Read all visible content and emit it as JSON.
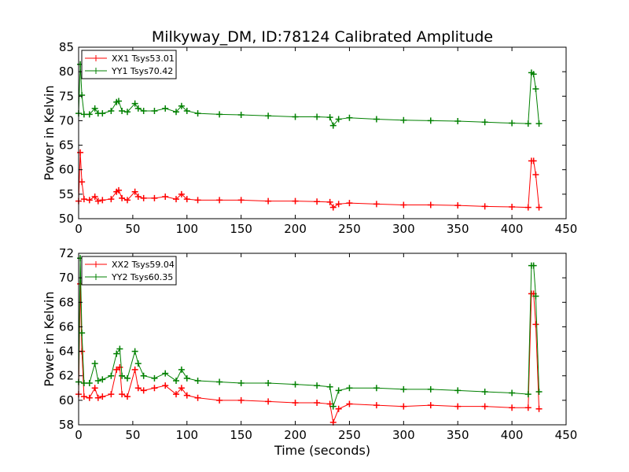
{
  "figure": {
    "title": "Milkyway_DM, ID:78124 Calibrated Amplitude",
    "x_label": "Time (seconds)",
    "y_label": "Power in Kelvin"
  },
  "colors": {
    "xx": "#ff0000",
    "yy": "#008000"
  },
  "chart_data": [
    {
      "type": "line",
      "ylabel": "Power in Kelvin",
      "xlim": [
        0,
        450
      ],
      "ylim": [
        50,
        85
      ],
      "xticks": [
        0,
        50,
        100,
        150,
        200,
        250,
        300,
        350,
        400,
        450
      ],
      "yticks": [
        50,
        55,
        60,
        65,
        70,
        75,
        80,
        85
      ],
      "grid": false,
      "legend": "top-left",
      "series": [
        {
          "name": "XX1 Tsys53.01",
          "color": "#ff0000",
          "x": [
            0,
            1.5,
            3,
            5,
            10,
            15,
            18,
            22,
            30,
            35,
            37,
            40,
            45,
            52,
            55,
            60,
            70,
            80,
            90,
            95,
            100,
            110,
            130,
            150,
            175,
            200,
            220,
            232,
            235,
            240,
            250,
            275,
            300,
            325,
            350,
            375,
            400,
            415,
            418,
            420,
            422,
            425
          ],
          "y": [
            53.6,
            63.5,
            57.5,
            54,
            53.8,
            54.5,
            53.6,
            53.8,
            54,
            55.5,
            55.8,
            54.2,
            53.8,
            55.5,
            54.5,
            54.2,
            54.2,
            54.5,
            54,
            55,
            54,
            53.8,
            53.8,
            53.8,
            53.6,
            53.6,
            53.5,
            53.4,
            52.3,
            53,
            53.2,
            53,
            52.8,
            52.8,
            52.7,
            52.5,
            52.4,
            52.3,
            61.8,
            61.8,
            59,
            52.3
          ]
        },
        {
          "name": "YY1 Tsys70.42",
          "color": "#008000",
          "x": [
            0,
            1.5,
            3,
            5,
            10,
            15,
            18,
            22,
            30,
            35,
            37,
            40,
            45,
            52,
            55,
            60,
            70,
            80,
            90,
            95,
            100,
            110,
            130,
            150,
            175,
            200,
            220,
            232,
            235,
            240,
            250,
            275,
            300,
            325,
            350,
            375,
            400,
            415,
            418,
            420,
            422,
            425
          ],
          "y": [
            71.5,
            81.5,
            75.2,
            71.3,
            71.3,
            72.5,
            71.5,
            71.5,
            72,
            73.8,
            74,
            72,
            71.8,
            73.5,
            72.5,
            72,
            72,
            72.5,
            71.8,
            73,
            72,
            71.5,
            71.3,
            71.2,
            71,
            70.8,
            70.8,
            70.7,
            69,
            70.3,
            70.6,
            70.3,
            70.1,
            70,
            69.9,
            69.7,
            69.5,
            69.4,
            79.8,
            79.5,
            76.5,
            69.4
          ]
        }
      ]
    },
    {
      "type": "line",
      "xlabel": "Time (seconds)",
      "ylabel": "Power in Kelvin",
      "xlim": [
        0,
        450
      ],
      "ylim": [
        58,
        72
      ],
      "xticks": [
        0,
        50,
        100,
        150,
        200,
        250,
        300,
        350,
        400,
        450
      ],
      "yticks": [
        58,
        60,
        62,
        64,
        66,
        68,
        70,
        72
      ],
      "grid": false,
      "legend": "top-left",
      "series": [
        {
          "name": "XX2 Tsys59.04",
          "color": "#ff0000",
          "x": [
            0,
            1.5,
            3,
            5,
            10,
            15,
            18,
            22,
            30,
            35,
            38,
            40,
            45,
            52,
            55,
            60,
            70,
            80,
            90,
            95,
            100,
            110,
            130,
            150,
            175,
            200,
            220,
            232,
            235,
            240,
            250,
            275,
            300,
            325,
            350,
            375,
            400,
            415,
            418,
            420,
            422,
            425
          ],
          "y": [
            60.5,
            69.5,
            64,
            60.3,
            60.2,
            61,
            60.2,
            60.3,
            60.5,
            62.5,
            62.7,
            60.5,
            60.3,
            62.5,
            61,
            60.8,
            61,
            61.2,
            60.5,
            61,
            60.4,
            60.2,
            60,
            60,
            59.9,
            59.8,
            59.8,
            59.7,
            58.2,
            59.3,
            59.7,
            59.6,
            59.5,
            59.6,
            59.5,
            59.5,
            59.4,
            59.4,
            68.7,
            68.7,
            66.2,
            59.3
          ]
        },
        {
          "name": "YY2 Tsys60.35",
          "color": "#008000",
          "x": [
            0,
            1.5,
            3,
            5,
            10,
            15,
            18,
            22,
            30,
            35,
            38,
            40,
            45,
            52,
            55,
            60,
            70,
            80,
            90,
            95,
            100,
            110,
            130,
            150,
            175,
            200,
            220,
            232,
            235,
            240,
            250,
            275,
            300,
            325,
            350,
            375,
            400,
            415,
            418,
            420,
            422,
            425
          ],
          "y": [
            61.5,
            71.6,
            65.5,
            61.4,
            61.4,
            63,
            61.6,
            61.7,
            62,
            63.8,
            64.2,
            62,
            61.8,
            64,
            63,
            62,
            61.8,
            62.2,
            61.6,
            62.5,
            61.8,
            61.6,
            61.5,
            61.4,
            61.4,
            61.3,
            61.2,
            61.1,
            59.5,
            60.8,
            61,
            61,
            60.9,
            60.9,
            60.8,
            60.7,
            60.6,
            60.5,
            71,
            71,
            68.5,
            60.7
          ]
        }
      ]
    }
  ]
}
